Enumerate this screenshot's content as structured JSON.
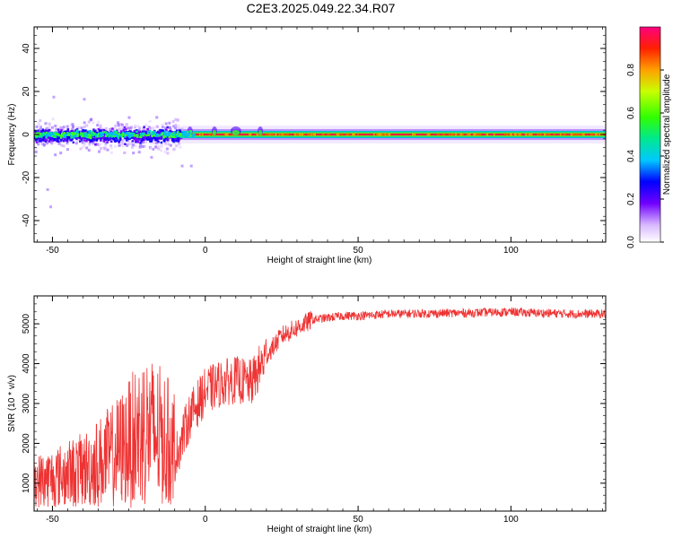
{
  "title": "C2E3.2025.049.22.34.R07",
  "chart_data": [
    {
      "type": "heatmap",
      "xlabel": "Height of straight line (km)",
      "ylabel": "Frequency (Hz)",
      "xlim": [
        -56,
        131
      ],
      "ylim": [
        -50,
        50
      ],
      "xticks": [
        -50,
        0,
        50,
        100
      ],
      "yticks": [
        -40,
        -20,
        0,
        20,
        40
      ],
      "colorbar": {
        "label": "Normalized spectral amplitude",
        "range": [
          0,
          1
        ],
        "ticks": [
          "0.0",
          "0.2",
          "0.4",
          "0.6",
          "0.8"
        ]
      },
      "description_values": {
        "carrier_frequency": 0,
        "scatter_region_x": [
          -56,
          -8
        ],
        "scatter_region_freq_spread": [
          -15,
          12
        ]
      }
    },
    {
      "type": "line",
      "xlabel": "Height of straight line (km)",
      "ylabel": "SNR (10 * v/v)",
      "xlim": [
        -56,
        131
      ],
      "ylim": [
        300,
        5700
      ],
      "xticks": [
        -50,
        0,
        50,
        100
      ],
      "yticks": [
        1000,
        2000,
        3000,
        4000,
        5000
      ],
      "series": [
        {
          "color": "#ee3333",
          "x": [
            -56,
            -50,
            -45,
            -40,
            -35,
            -30,
            -25,
            -20,
            -15,
            -10,
            -5,
            0,
            5,
            10,
            15,
            20,
            25,
            30,
            35,
            40,
            45,
            50,
            55,
            60,
            65,
            70,
            75,
            80,
            85,
            90,
            95,
            100,
            105,
            110,
            115,
            120,
            125,
            131
          ],
          "y": [
            700,
            800,
            900,
            1000,
            1200,
            1400,
            1700,
            2100,
            1900,
            1600,
            2700,
            3300,
            3500,
            3600,
            3500,
            4200,
            4700,
            4900,
            5100,
            5150,
            5200,
            5200,
            5220,
            5250,
            5250,
            5260,
            5260,
            5270,
            5270,
            5280,
            5290,
            5300,
            5280,
            5270,
            5260,
            5250,
            5250,
            5250
          ]
        }
      ]
    }
  ]
}
